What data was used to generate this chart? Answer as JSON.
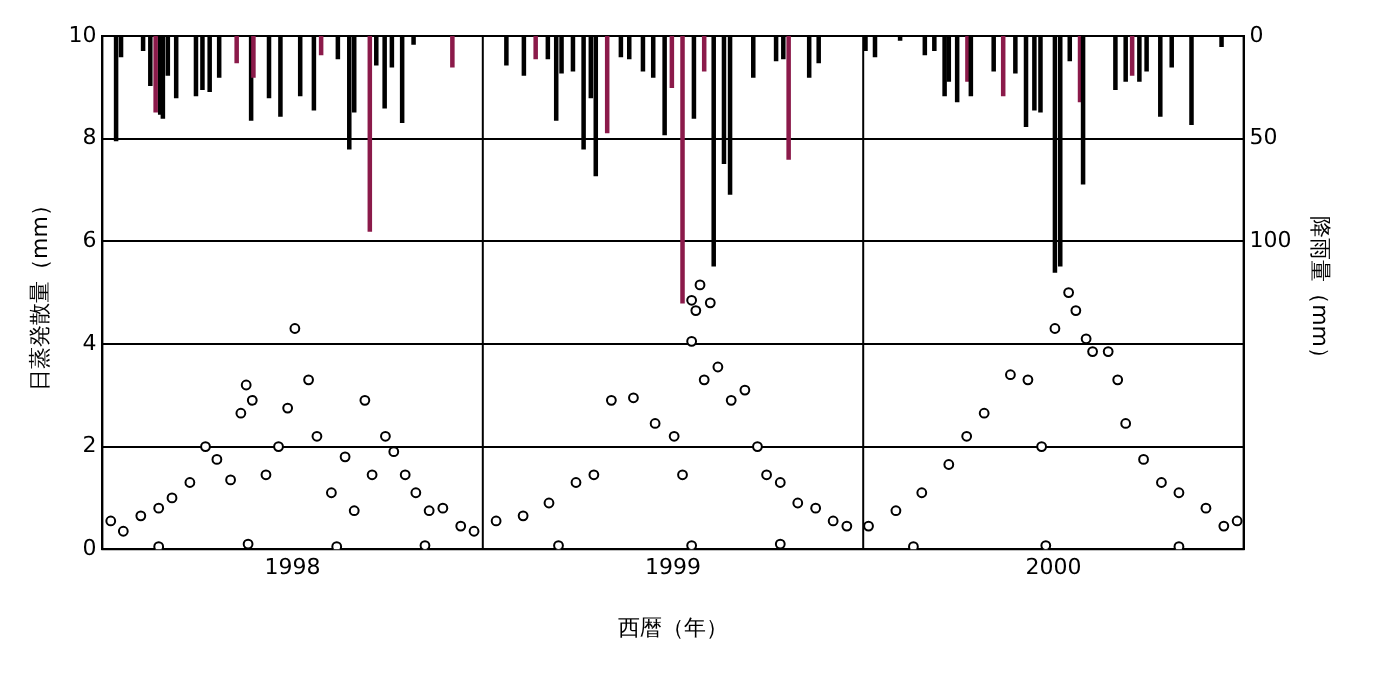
{
  "chart_data": {
    "type": "bar",
    "xlabel": "西暦（年）",
    "ylabel": "日蒸発散量（mm）",
    "y2label": "降雨量（mm）",
    "xlim": [
      1997.5,
      2000.5
    ],
    "xticks": [
      1998,
      1999,
      2000
    ],
    "ylim": [
      0,
      10
    ],
    "yticks": [
      0,
      2,
      4,
      6,
      8,
      10
    ],
    "y2lim": [
      250,
      0
    ],
    "y2ticks": [
      0,
      50,
      100
    ],
    "grid": "y",
    "marker": "circle",
    "ref_lines": [
      {
        "axis": "x",
        "value": 1998.5,
        "color": "#000000"
      },
      {
        "axis": "x",
        "value": 1999.5,
        "color": "#000000"
      }
    ],
    "series": [
      {
        "axis": "y2",
        "x": [
          1997.536,
          1997.549,
          1997.607,
          1997.626,
          1997.64,
          1997.652,
          1997.659,
          1997.672,
          1997.694,
          1997.746,
          1997.763,
          1997.782,
          1997.807,
          1997.853,
          1997.891,
          1997.897,
          1997.938,
          1997.968,
          1998.02,
          1998.056,
          1998.075,
          1998.119,
          1998.149,
          1998.162,
          1998.203,
          1998.22,
          1998.242,
          1998.261,
          1998.288,
          1998.318,
          1998.42,
          1998.562,
          1998.608,
          1998.639,
          1998.671,
          1998.693,
          1998.707,
          1998.737,
          1998.765,
          1998.784,
          1998.797,
          1998.827,
          1998.863,
          1998.885,
          1998.921,
          1998.948,
          1998.978,
          1998.997,
          1999.025,
          1999.055,
          1999.082,
          1999.107,
          1999.134,
          1999.15,
          1999.211,
          1999.271,
          1999.29,
          1999.304,
          1999.358,
          1999.383,
          1999.506,
          1999.531,
          1999.597,
          1999.662,
          1999.687,
          1999.714,
          1999.725,
          1999.747,
          1999.774,
          1999.783,
          1999.843,
          1999.868,
          1999.9,
          1999.928,
          1999.95,
          1999.966,
          2000.004,
          2000.018,
          2000.043,
          2000.07,
          2000.078,
          2000.163,
          2000.19,
          2000.207,
          2000.226,
          2000.245,
          2000.281,
          2000.311,
          2000.363,
          2000.442
        ],
        "values": [
          51,
          10,
          7,
          24,
          37,
          38,
          40,
          19,
          30,
          29,
          26,
          27,
          20,
          13,
          41,
          20,
          30,
          39,
          29,
          36,
          9,
          11,
          55,
          37,
          95,
          14,
          35,
          15,
          42,
          4,
          15,
          14,
          19,
          11,
          11,
          41,
          18,
          17,
          55,
          30,
          68,
          47,
          10,
          11,
          17,
          20,
          48,
          25,
          130,
          40,
          17,
          112,
          62,
          77,
          20,
          12,
          11,
          60,
          20,
          13,
          7,
          10,
          2,
          9,
          7,
          29,
          22,
          32,
          22,
          29,
          17,
          29,
          18,
          44,
          36,
          37,
          115,
          112,
          12,
          32,
          72,
          26,
          22,
          19,
          22,
          17,
          39,
          15,
          43,
          5
        ],
        "colors": [
          "#000000",
          "#000000",
          "#000000",
          "#000000",
          "#8b1a4a",
          "#000000",
          "#000000",
          "#000000",
          "#000000",
          "#000000",
          "#000000",
          "#000000",
          "#000000",
          "#8b1a4a",
          "#000000",
          "#8b1a4a",
          "#000000",
          "#000000",
          "#000000",
          "#000000",
          "#8b1a4a",
          "#000000",
          "#000000",
          "#000000",
          "#8b1a4a",
          "#000000",
          "#000000",
          "#000000",
          "#000000",
          "#000000",
          "#8b1a4a",
          "#000000",
          "#000000",
          "#8b1a4a",
          "#000000",
          "#000000",
          "#000000",
          "#000000",
          "#000000",
          "#000000",
          "#000000",
          "#8b1a4a",
          "#000000",
          "#000000",
          "#000000",
          "#000000",
          "#000000",
          "#8b1a4a",
          "#8b1a4a",
          "#000000",
          "#8b1a4a",
          "#000000",
          "#000000",
          "#000000",
          "#000000",
          "#000000",
          "#000000",
          "#8b1a4a",
          "#000000",
          "#000000",
          "#000000",
          "#000000",
          "#000000",
          "#000000",
          "#000000",
          "#000000",
          "#000000",
          "#000000",
          "#8b1a4a",
          "#000000",
          "#000000",
          "#8b1a4a",
          "#000000",
          "#000000",
          "#000000",
          "#000000",
          "#000000",
          "#000000",
          "#000000",
          "#8b1a4a",
          "#000000",
          "#000000",
          "#000000",
          "#8b1a4a",
          "#000000",
          "#000000",
          "#000000",
          "#000000",
          "#000000",
          "#000000"
        ]
      },
      {
        "type": "scatter",
        "color": "#000000",
        "x": [
          1997.522,
          1997.555,
          1997.601,
          1997.648,
          1997.683,
          1997.73,
          1997.771,
          1997.801,
          1997.837,
          1997.864,
          1997.878,
          1997.894,
          1997.93,
          1997.963,
          1997.987,
          1998.006,
          1998.042,
          1998.064,
          1998.102,
          1998.138,
          1998.162,
          1998.19,
          1998.209,
          1998.244,
          1998.266,
          1998.296,
          1998.324,
          1998.359,
          1998.395,
          1998.442,
          1998.477,
          1997.648,
          1997.883,
          1998.116,
          1998.348,
          1998.535,
          1998.606,
          1998.674,
          1998.745,
          1998.792,
          1998.838,
          1998.896,
          1998.953,
          1999.003,
          1999.025,
          1999.049,
          1999.06,
          1999.071,
          1999.098,
          1999.049,
          1999.082,
          1999.118,
          1999.153,
          1999.189,
          1999.222,
          1999.246,
          1999.282,
          1999.328,
          1999.375,
          1999.421,
          1999.457,
          1998.699,
          1999.049,
          1999.282,
          1999.514,
          1999.586,
          1999.654,
          1999.725,
          1999.772,
          1999.818,
          1999.887,
          1999.933,
          1999.969,
          2000.004,
          2000.04,
          2000.059,
          2000.086,
          2000.103,
          2000.144,
          2000.169,
          2000.19,
          2000.237,
          2000.284,
          2000.33,
          2000.401,
          2000.448,
          2000.483,
          1999.632,
          1999.98,
          2000.33
        ],
        "values": [
          0.55,
          0.35,
          0.65,
          0.8,
          1.0,
          1.3,
          2.0,
          1.75,
          1.35,
          2.65,
          3.2,
          2.9,
          1.45,
          2.0,
          2.75,
          4.3,
          3.3,
          2.2,
          1.1,
          1.8,
          0.75,
          2.9,
          1.45,
          2.2,
          1.9,
          1.45,
          1.1,
          0.75,
          0.8,
          0.45,
          0.35,
          0.05,
          0.1,
          0.05,
          0.07,
          0.55,
          0.65,
          0.9,
          1.3,
          1.45,
          2.9,
          2.95,
          2.45,
          2.2,
          1.45,
          4.85,
          4.65,
          5.15,
          4.8,
          4.05,
          3.3,
          3.55,
          2.9,
          3.1,
          2.0,
          1.45,
          1.3,
          0.9,
          0.8,
          0.55,
          0.45,
          0.07,
          0.07,
          0.1,
          0.45,
          0.75,
          1.1,
          1.65,
          2.2,
          2.65,
          3.4,
          3.3,
          2.0,
          4.3,
          5.0,
          4.65,
          4.1,
          3.85,
          3.85,
          3.3,
          2.45,
          1.75,
          1.3,
          1.1,
          0.8,
          0.45,
          0.55,
          0.05,
          0.07,
          0.05
        ]
      }
    ]
  }
}
